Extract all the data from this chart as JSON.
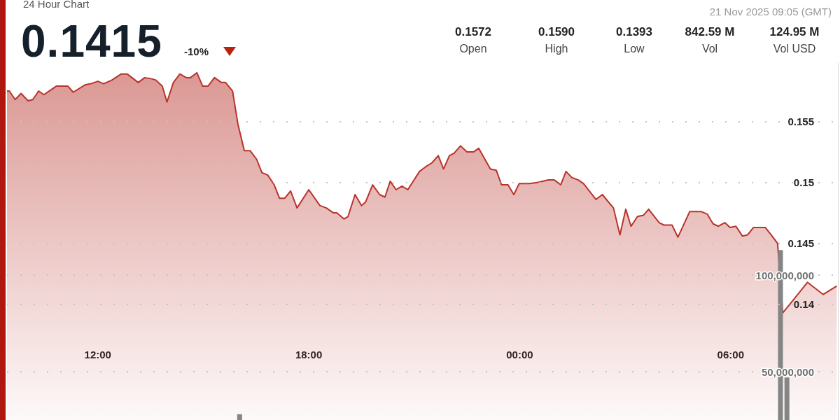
{
  "chart_data": {
    "type": "area",
    "title": "24 Hour Chart",
    "annotations": [
      "0.1415",
      "-10%",
      "21 Nov 2025 09:05 (GMT)",
      "0.1572",
      "Open",
      "0.1590",
      "High",
      "0.1393",
      "Low",
      "842.59 M",
      "Vol",
      "124.95 M",
      "Vol USD"
    ],
    "xlim": [
      "2025-11-20T09:25",
      "2025-11-21T09:03"
    ],
    "xticks": [
      {
        "value": "2025-11-20T12:00",
        "label": "12:00"
      },
      {
        "value": "2025-11-20T18:00",
        "label": "18:00"
      },
      {
        "value": "2025-11-21T00:00",
        "label": "00:00"
      },
      {
        "value": "2025-11-21T06:00",
        "label": "06:00"
      }
    ],
    "ylim": [
      0.1305,
      0.1598
    ],
    "yticks": [
      0.14,
      0.145,
      0.15,
      0.155
    ],
    "y2lim": [
      25000000,
      209800000
    ],
    "y2ticks": [
      {
        "value": 50000000,
        "label": "50,000,000"
      },
      {
        "value": 100000000,
        "label": "100,000,000"
      }
    ],
    "grid": "y",
    "series": [
      {
        "color": "#b8332b",
        "x": [
          "2025-11-20T09:25",
          "2025-11-20T09:29",
          "2025-11-20T09:39",
          "2025-11-20T09:49",
          "2025-11-20T10:01",
          "2025-11-20T10:09",
          "2025-11-20T10:19",
          "2025-11-20T10:28",
          "2025-11-20T10:49",
          "2025-11-20T10:58",
          "2025-11-20T11:09",
          "2025-11-20T11:18",
          "2025-11-20T11:38",
          "2025-11-20T11:48",
          "2025-11-20T12:00",
          "2025-11-20T12:10",
          "2025-11-20T12:24",
          "2025-11-20T12:40",
          "2025-11-20T12:50",
          "2025-11-20T13:09",
          "2025-11-20T13:20",
          "2025-11-20T13:32",
          "2025-11-20T13:39",
          "2025-11-20T13:50",
          "2025-11-20T13:58",
          "2025-11-20T14:09",
          "2025-11-20T14:20",
          "2025-11-20T14:31",
          "2025-11-20T14:38",
          "2025-11-20T14:49",
          "2025-11-20T14:59",
          "2025-11-20T15:08",
          "2025-11-20T15:19",
          "2025-11-20T15:31",
          "2025-11-20T15:38",
          "2025-11-20T15:50",
          "2025-11-20T15:59",
          "2025-11-20T16:10",
          "2025-11-20T16:20",
          "2025-11-20T16:31",
          "2025-11-20T16:40",
          "2025-11-20T16:50",
          "2025-11-20T17:01",
          "2025-11-20T17:10",
          "2025-11-20T17:19",
          "2025-11-20T17:29",
          "2025-11-20T17:40",
          "2025-11-20T18:00",
          "2025-11-20T18:19",
          "2025-11-20T18:30",
          "2025-11-20T18:42",
          "2025-11-20T18:48",
          "2025-11-20T19:00",
          "2025-11-20T19:07",
          "2025-11-20T19:19",
          "2025-11-20T19:30",
          "2025-11-20T19:37",
          "2025-11-20T19:49",
          "2025-11-20T20:01",
          "2025-11-20T20:10",
          "2025-11-20T20:19",
          "2025-11-20T20:29",
          "2025-11-20T20:39",
          "2025-11-20T20:49",
          "2025-11-20T21:09",
          "2025-11-20T21:20",
          "2025-11-20T21:30",
          "2025-11-20T21:41",
          "2025-11-20T21:50",
          "2025-11-20T22:00",
          "2025-11-20T22:08",
          "2025-11-20T22:19",
          "2025-11-20T22:30",
          "2025-11-20T22:41",
          "2025-11-20T22:50",
          "2025-11-20T23:10",
          "2025-11-20T23:20",
          "2025-11-20T23:29",
          "2025-11-20T23:40",
          "2025-11-20T23:50",
          "2025-11-20T23:59",
          "2025-11-21T00:16",
          "2025-11-21T00:31",
          "2025-11-21T00:49",
          "2025-11-21T00:59",
          "2025-11-21T01:10",
          "2025-11-21T01:19",
          "2025-11-21T01:29",
          "2025-11-21T01:40",
          "2025-11-21T01:49",
          "2025-11-21T02:10",
          "2025-11-21T02:21",
          "2025-11-21T02:40",
          "2025-11-21T02:51",
          "2025-11-21T03:01",
          "2025-11-21T03:10",
          "2025-11-21T03:21",
          "2025-11-21T03:31",
          "2025-11-21T03:40",
          "2025-11-21T03:58",
          "2025-11-21T04:06",
          "2025-11-21T04:20",
          "2025-11-21T04:30",
          "2025-11-21T04:50",
          "2025-11-21T05:10",
          "2025-11-21T05:20",
          "2025-11-21T05:30",
          "2025-11-21T05:39",
          "2025-11-21T05:50",
          "2025-11-21T05:59",
          "2025-11-21T06:09",
          "2025-11-21T06:20",
          "2025-11-21T06:29",
          "2025-11-21T06:39",
          "2025-11-21T06:59",
          "2025-11-21T07:09",
          "2025-11-21T07:20",
          "2025-11-21T07:29",
          "2025-11-21T07:41",
          "2025-11-21T08:11",
          "2025-11-21T08:38",
          "2025-11-21T09:01"
        ],
        "values": [
          0.1575,
          0.1575,
          0.1568,
          0.1573,
          0.1567,
          0.1568,
          0.1575,
          0.1572,
          0.1579,
          0.1579,
          0.1579,
          0.1574,
          0.158,
          0.1581,
          0.1583,
          0.1581,
          0.1584,
          0.1589,
          0.1589,
          0.1582,
          0.1586,
          0.1585,
          0.1584,
          0.1579,
          0.1566,
          0.1582,
          0.1589,
          0.1586,
          0.1586,
          0.159,
          0.1579,
          0.1579,
          0.1586,
          0.1582,
          0.1582,
          0.1575,
          0.1548,
          0.1526,
          0.1526,
          0.1519,
          0.1508,
          0.1506,
          0.1498,
          0.1487,
          0.1487,
          0.1493,
          0.1479,
          0.1494,
          0.1481,
          0.1479,
          0.1475,
          0.1475,
          0.147,
          0.1472,
          0.149,
          0.1481,
          0.1484,
          0.1498,
          0.149,
          0.1488,
          0.1501,
          0.1494,
          0.1497,
          0.1494,
          0.1509,
          0.1513,
          0.1516,
          0.1522,
          0.1511,
          0.1522,
          0.1524,
          0.153,
          0.1525,
          0.1525,
          0.1528,
          0.1511,
          0.151,
          0.1498,
          0.1498,
          0.149,
          0.1499,
          0.1499,
          0.15,
          0.1502,
          0.1502,
          0.1498,
          0.1509,
          0.1504,
          0.1502,
          0.1499,
          0.1486,
          0.149,
          0.1479,
          0.1457,
          0.1478,
          0.1464,
          0.1472,
          0.1473,
          0.1478,
          0.1467,
          0.1465,
          0.1465,
          0.1455,
          0.1476,
          0.1476,
          0.1474,
          0.1466,
          0.1464,
          0.1467,
          0.1463,
          0.1464,
          0.1456,
          0.1457,
          0.1463,
          0.1463,
          0.1457,
          0.145,
          0.1393,
          0.14,
          0.1418,
          0.1408,
          0.1415
        ]
      },
      {
        "type": "bar",
        "axis": "y2",
        "color": "#858585",
        "x": [
          "2025-11-20T16:02",
          "2025-11-21T07:25",
          "2025-11-21T07:36"
        ],
        "values": [
          28000000,
          113000000,
          47000000
        ]
      }
    ]
  }
}
